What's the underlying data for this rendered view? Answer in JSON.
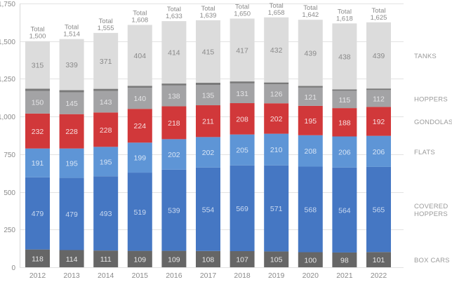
{
  "chart_data": {
    "type": "bar",
    "stacked": true,
    "title": "",
    "xlabel": "",
    "ylabel": "",
    "ylim": [
      0,
      1750
    ],
    "yticks": [
      0,
      250,
      500,
      750,
      1000,
      1250,
      1500,
      1750
    ],
    "ytick_labels": [
      "0",
      "250",
      "500",
      "750",
      "1,000",
      "1,250",
      "1,500",
      "1,750"
    ],
    "grid": true,
    "legend_placement": "right",
    "categories": [
      "2012",
      "2013",
      "2014",
      "2015",
      "2016",
      "2017",
      "2018",
      "2019",
      "2020",
      "2021",
      "2022"
    ],
    "series": [
      {
        "name": "BOX CARS",
        "color": "#666666",
        "label_color": "#e8e8e8",
        "show_labels": true,
        "values": [
          118,
          114,
          111,
          109,
          109,
          108,
          107,
          105,
          100,
          98,
          101
        ]
      },
      {
        "name": "COVERED HOPPERS",
        "color": "#4577c3",
        "label_color": "#c9d9f0",
        "show_labels": true,
        "values": [
          479,
          479,
          493,
          519,
          539,
          554,
          569,
          571,
          568,
          564,
          565
        ]
      },
      {
        "name": "FLATS",
        "color": "#5e95d6",
        "label_color": "#d6e4f5",
        "show_labels": true,
        "values": [
          191,
          195,
          195,
          199,
          202,
          202,
          205,
          210,
          208,
          206,
          206
        ]
      },
      {
        "name": "GONDOLAS",
        "color": "#d1383a",
        "label_color": "#f7dede",
        "show_labels": true,
        "values": [
          232,
          228,
          228,
          224,
          218,
          211,
          208,
          202,
          195,
          188,
          192
        ]
      },
      {
        "name": "HOPPERS",
        "color": "#a3a3a5",
        "label_color": "#e4e4e6",
        "show_labels": true,
        "values": [
          150,
          145,
          143,
          140,
          138,
          135,
          131,
          126,
          121,
          115,
          112
        ]
      },
      {
        "name": "OTHER",
        "color": "#797979",
        "label_color": "#ffffff",
        "show_labels": false,
        "values": [
          15,
          14,
          14,
          13,
          13,
          14,
          13,
          12,
          11,
          9,
          10
        ]
      },
      {
        "name": "TANKS",
        "color": "#dcdcdc",
        "label_color": "#8a8a8a",
        "show_labels": true,
        "values": [
          315,
          339,
          371,
          404,
          414,
          415,
          417,
          432,
          439,
          438,
          439
        ]
      }
    ],
    "totals_prefix": "Total",
    "totals": [
      "1,500",
      "1,514",
      "1,555",
      "1,608",
      "1,633",
      "1,639",
      "1,650",
      "1,658",
      "1,642",
      "1,618",
      "1,625"
    ],
    "legend": [
      {
        "series": "TANKS",
        "lines": [
          "TANKS"
        ]
      },
      {
        "series": "HOPPERS",
        "lines": [
          "HOPPERS"
        ]
      },
      {
        "series": "GONDOLAS",
        "lines": [
          "GONDOLAS"
        ]
      },
      {
        "series": "FLATS",
        "lines": [
          "FLATS"
        ]
      },
      {
        "series": "COVERED HOPPERS",
        "lines": [
          "COVERED",
          "HOPPERS"
        ]
      },
      {
        "series": "BOX CARS",
        "lines": [
          "BOX CARS"
        ]
      }
    ]
  }
}
